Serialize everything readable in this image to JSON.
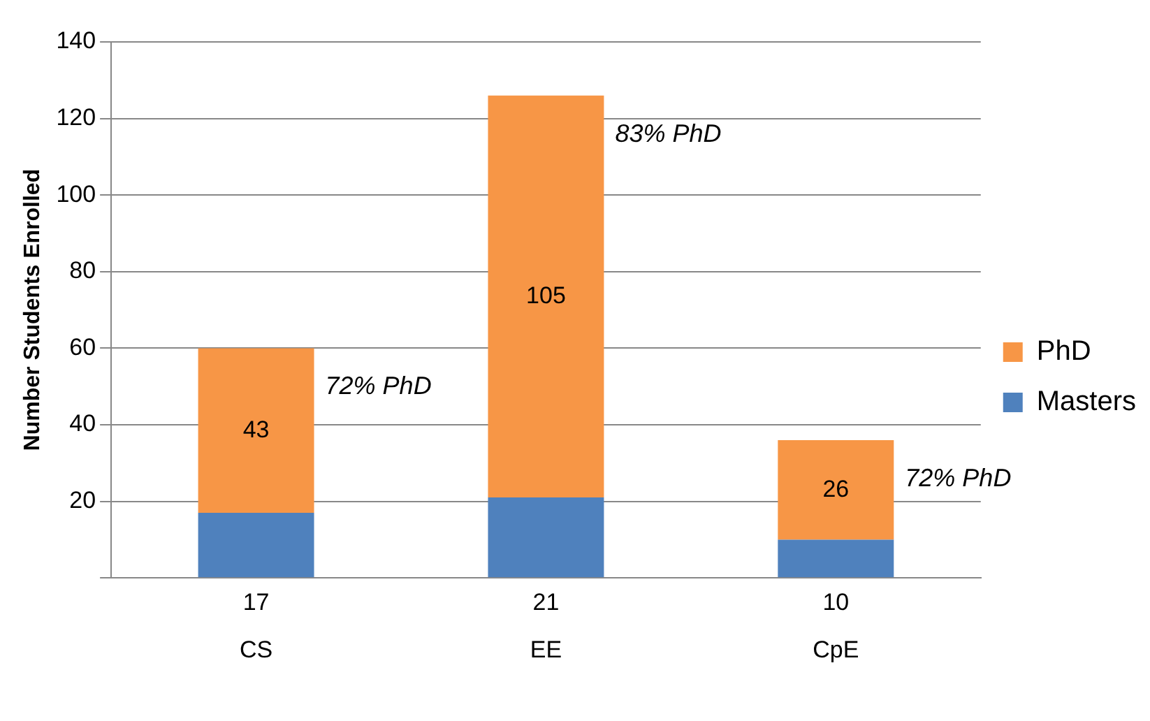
{
  "chart_data": {
    "type": "bar",
    "stacked": true,
    "ylabel": "Number Students Enrolled",
    "categories": [
      "CS",
      "EE",
      "CpE"
    ],
    "series": [
      {
        "name": "Masters",
        "color": "#4f81bd",
        "values": [
          17,
          21,
          10
        ]
      },
      {
        "name": "PhD",
        "color": "#f79646",
        "values": [
          43,
          105,
          26
        ]
      }
    ],
    "ylim": [
      0,
      140
    ],
    "yticks": [
      {
        "value": 0,
        "label": null
      },
      20,
      40,
      60,
      80,
      100,
      120,
      140
    ],
    "grid": "y",
    "legend": "right",
    "data_labels": true,
    "annotations": [
      "72% PhD",
      "83% PhD",
      "72% PhD"
    ]
  }
}
